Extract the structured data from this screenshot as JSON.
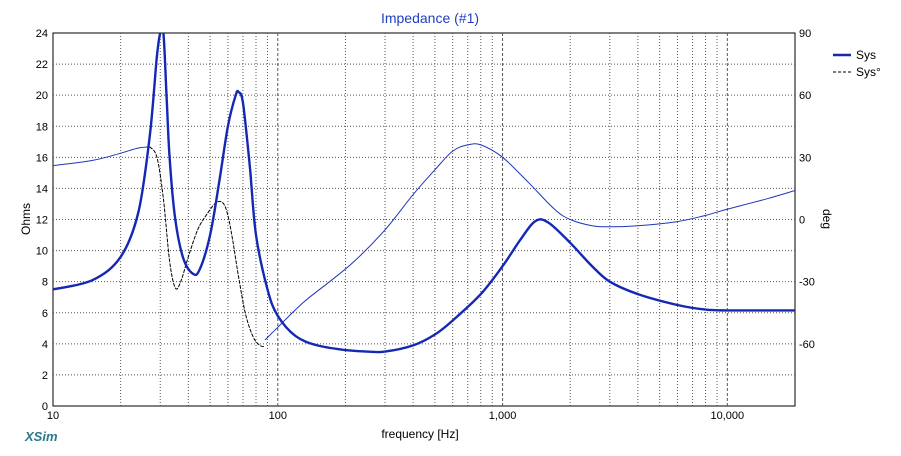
{
  "chart_data": {
    "type": "line",
    "title": "Impedance (#1)",
    "xlabel": "frequency [Hz]",
    "ylabel": "Ohms",
    "y2label": "deg",
    "x_scale": "log",
    "xlim": [
      10,
      20000
    ],
    "ylim": [
      0,
      24
    ],
    "y2lim": [
      -90,
      90
    ],
    "x_tick_labels": [
      "10",
      "100",
      "1,000",
      "10,000"
    ],
    "y_tick_labels": [
      "0",
      "2",
      "4",
      "6",
      "8",
      "10",
      "12",
      "14",
      "16",
      "18",
      "20",
      "22",
      "24"
    ],
    "y2_tick_labels": [
      "-60",
      "-30",
      "0",
      "30",
      "60",
      "90"
    ],
    "grid": true,
    "legend_position": "top-right",
    "series": [
      {
        "name": "Sys",
        "axis": "left",
        "style": "solid-thick",
        "color": "#1428b4",
        "x": [
          10,
          15,
          20,
          24,
          27,
          29,
          30,
          31,
          32,
          33,
          35,
          38,
          42,
          45,
          50,
          55,
          60,
          65,
          67,
          70,
          75,
          80,
          90,
          100,
          120,
          150,
          200,
          250,
          300,
          400,
          500,
          600,
          800,
          1000,
          1200,
          1400,
          1600,
          2000,
          2500,
          3000,
          4000,
          6000,
          8000,
          10000,
          15000,
          20000
        ],
        "y": [
          7.5,
          8.1,
          9.6,
          12.5,
          17.5,
          22.5,
          24,
          24,
          20,
          16,
          12,
          9.5,
          8.5,
          8.8,
          11,
          14.5,
          18,
          20,
          20.2,
          19.5,
          15.5,
          11,
          7.5,
          5.8,
          4.5,
          3.9,
          3.6,
          3.5,
          3.5,
          3.9,
          4.6,
          5.5,
          7.2,
          9,
          10.7,
          11.9,
          11.8,
          10.5,
          9,
          8,
          7.2,
          6.5,
          6.2,
          6.15,
          6.15,
          6.15
        ]
      },
      {
        "name": "Sys°",
        "axis": "right",
        "style": "thin",
        "color": "#2036b8",
        "x": [
          10,
          15,
          20,
          24,
          27
        ],
        "y": [
          26,
          28.5,
          32,
          34.5,
          35
        ]
      },
      {
        "name": "Sys°",
        "axis": "right",
        "style": "dashed",
        "color": "#000000",
        "x": [
          27,
          29,
          31,
          33,
          35,
          37,
          40,
          44,
          48,
          53,
          57,
          60,
          63,
          67,
          72,
          78,
          84,
          88
        ],
        "y": [
          35,
          30,
          10,
          -20,
          -33,
          -30,
          -18,
          -5,
          2,
          8,
          8,
          2,
          -10,
          -28,
          -46,
          -57,
          -61,
          -61
        ]
      },
      {
        "name": "Sys°",
        "axis": "right",
        "style": "thin",
        "color": "#2036b8",
        "x": [
          88,
          100,
          130,
          170,
          220,
          300,
          400,
          500,
          600,
          700,
          800,
          1000,
          1300,
          1700,
          2000,
          2500,
          3000,
          4000,
          6000,
          8000,
          10000,
          15000,
          20000
        ],
        "y": [
          -58,
          -52,
          -40,
          -30,
          -20,
          -5,
          12,
          24,
          33,
          36,
          36,
          30,
          18,
          5,
          0,
          -3,
          -3.5,
          -3,
          -1,
          2,
          5,
          10,
          14
        ]
      }
    ]
  },
  "legend": {
    "items": [
      {
        "label": "Sys",
        "color": "#1428b4",
        "style": "solid-thick"
      },
      {
        "label": "Sys°",
        "color": "#000000",
        "style": "dashed"
      }
    ]
  },
  "brand": "XSim"
}
